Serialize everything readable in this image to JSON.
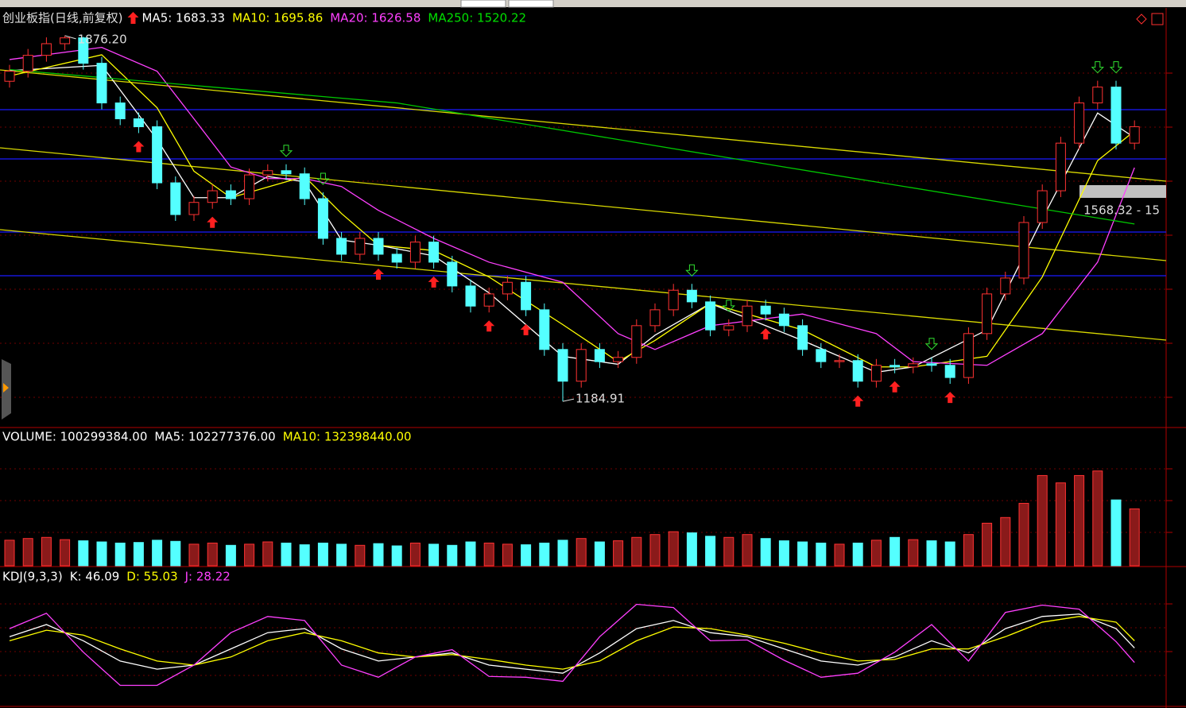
{
  "chart_data": [
    {
      "type": "candlestick",
      "title": "创业板指(日线,前复权)",
      "header": [
        {
          "text": "MA5: 1683.33",
          "color": "#ffffff"
        },
        {
          "text": "MA10: 1695.86",
          "color": "#ffff00"
        },
        {
          "text": "MA20: 1626.58",
          "color": "#ff40ff"
        },
        {
          "text": "MA250: 1520.22",
          "color": "#00e000"
        }
      ],
      "open": [
        1790,
        1809,
        1839,
        1861,
        1872,
        1824,
        1749,
        1719,
        1704,
        1598,
        1538,
        1561,
        1583,
        1568,
        1613,
        1621,
        1615,
        1568,
        1493,
        1463,
        1493,
        1463,
        1448,
        1486,
        1448,
        1403,
        1365,
        1388,
        1410,
        1358,
        1283,
        1223,
        1283,
        1260,
        1268,
        1328,
        1358,
        1395,
        1373,
        1320,
        1328,
        1365,
        1350,
        1328,
        1283,
        1260,
        1262,
        1223,
        1253,
        1250,
        1256,
        1253,
        1230,
        1313,
        1388,
        1418,
        1523,
        1583,
        1673,
        1749,
        1779,
        1673
      ],
      "high": [
        1821,
        1851,
        1873,
        1876.2,
        1874,
        1836,
        1761,
        1731,
        1716,
        1610,
        1573,
        1595,
        1595,
        1625,
        1633,
        1633,
        1627,
        1580,
        1505,
        1505,
        1505,
        1475,
        1498,
        1498,
        1460,
        1415,
        1400,
        1422,
        1422,
        1370,
        1295,
        1295,
        1295,
        1280,
        1340,
        1370,
        1407,
        1407,
        1385,
        1340,
        1377,
        1377,
        1362,
        1340,
        1295,
        1274,
        1274,
        1265,
        1265,
        1268,
        1268,
        1265,
        1325,
        1400,
        1430,
        1535,
        1595,
        1685,
        1761,
        1791,
        1791,
        1716
      ],
      "low": [
        1778,
        1797,
        1827,
        1849,
        1812,
        1737,
        1707,
        1692,
        1586,
        1526,
        1526,
        1549,
        1556,
        1556,
        1601,
        1603,
        1556,
        1481,
        1451,
        1451,
        1451,
        1436,
        1436,
        1436,
        1391,
        1353,
        1353,
        1376,
        1346,
        1271,
        1184.91,
        1211,
        1248,
        1248,
        1256,
        1316,
        1346,
        1361,
        1308,
        1308,
        1316,
        1338,
        1316,
        1271,
        1248,
        1248,
        1211,
        1211,
        1238,
        1238,
        1241,
        1218,
        1218,
        1301,
        1376,
        1406,
        1511,
        1571,
        1661,
        1737,
        1661,
        1661
      ],
      "close": [
        1809,
        1839,
        1861,
        1872,
        1824,
        1749,
        1719,
        1704,
        1598,
        1538,
        1561,
        1583,
        1568,
        1613,
        1621,
        1615,
        1568,
        1493,
        1463,
        1493,
        1463,
        1448,
        1486,
        1448,
        1403,
        1365,
        1388,
        1410,
        1358,
        1283,
        1223,
        1283,
        1260,
        1268,
        1328,
        1358,
        1395,
        1373,
        1320,
        1328,
        1365,
        1350,
        1328,
        1283,
        1260,
        1262,
        1223,
        1253,
        1250,
        1256,
        1253,
        1230,
        1313,
        1388,
        1418,
        1523,
        1583,
        1673,
        1749,
        1779,
        1673,
        1704
      ],
      "up_color": "#ff3232",
      "down_color": "#54ffff",
      "high_label": "1876.20",
      "low_label": "1184.91",
      "range_label": "1568.32 - 15",
      "buy_signals": [
        7,
        11,
        20,
        23,
        26,
        28,
        41,
        46,
        48,
        51
      ],
      "sell_signals": [
        15,
        17,
        37,
        39,
        50,
        59,
        60
      ],
      "series": [
        {
          "name": "MA5",
          "color": "#ffffff",
          "x": [
            0,
            5,
            8,
            10,
            12,
            14,
            16,
            18,
            20,
            23,
            26,
            30,
            33,
            35,
            38,
            43,
            47,
            49,
            53,
            56,
            59,
            61
          ],
          "values": [
            1810,
            1820,
            1680,
            1570,
            1570,
            1610,
            1600,
            1490,
            1480,
            1460,
            1390,
            1270,
            1255,
            1310,
            1370,
            1300,
            1240,
            1250,
            1320,
            1530,
            1730,
            1683.33
          ]
        },
        {
          "name": "MA10",
          "color": "#ffff00",
          "x": [
            0,
            5,
            8,
            10,
            12,
            14,
            16,
            18,
            20,
            23,
            26,
            30,
            33,
            35,
            38,
            43,
            47,
            49,
            53,
            56,
            59,
            61
          ],
          "values": [
            1800,
            1840,
            1740,
            1620,
            1570,
            1590,
            1610,
            1540,
            1480,
            1470,
            1420,
            1330,
            1260,
            1300,
            1370,
            1320,
            1250,
            1250,
            1270,
            1420,
            1640,
            1695.86
          ]
        },
        {
          "name": "MA20",
          "color": "#ff40ff",
          "x": [
            0,
            5,
            8,
            10,
            12,
            14,
            16,
            18,
            20,
            23,
            26,
            30,
            33,
            35,
            38,
            43,
            47,
            49,
            53,
            56,
            59,
            61
          ],
          "values": [
            1831,
            1854,
            1809,
            1719,
            1628,
            1606,
            1606,
            1591,
            1546,
            1493,
            1448,
            1410,
            1313,
            1283,
            1328,
            1350,
            1313,
            1260,
            1253,
            1313,
            1448,
            1626.58
          ]
        },
        {
          "name": "MA250",
          "color": "#00c800",
          "x": [
            0,
            21,
            42,
            61
          ],
          "values": [
            1812,
            1749,
            1628,
            1520.22
          ]
        }
      ],
      "ylim": [
        1137,
        1891
      ]
    },
    {
      "type": "bar",
      "header": [
        {
          "text": "VOLUME: 100299384.00",
          "color": "#ffffff"
        },
        {
          "text": "MA5: 102277376.00",
          "color": "#ffffff"
        },
        {
          "text": "MA10: 132398440.00",
          "color": "#ffff00"
        }
      ],
      "values": [
        45000000,
        48000000,
        50000000,
        46000000,
        44000000,
        42000000,
        40000000,
        41000000,
        45000000,
        43000000,
        38000000,
        40000000,
        36000000,
        38000000,
        42000000,
        40000000,
        37000000,
        40000000,
        38000000,
        36000000,
        39000000,
        35000000,
        40000000,
        38000000,
        36000000,
        42000000,
        40000000,
        38000000,
        37000000,
        40000000,
        45000000,
        48000000,
        42000000,
        44000000,
        50000000,
        55000000,
        60000000,
        58000000,
        52000000,
        50000000,
        55000000,
        48000000,
        44000000,
        42000000,
        40000000,
        38000000,
        40000000,
        45000000,
        50000000,
        46000000,
        44000000,
        42000000,
        55000000,
        75000000,
        85000000,
        110000000,
        159000000,
        146000000,
        159000000,
        167000000,
        116000000,
        100299384
      ],
      "ylim": [
        0,
        210000000
      ]
    },
    {
      "type": "line",
      "header": [
        {
          "text": "KDJ(9,3,3)",
          "color": "#ffffff"
        },
        {
          "text": "K: 46.09",
          "color": "#ffffff"
        },
        {
          "text": "D: 55.03",
          "color": "#ffff00"
        },
        {
          "text": "J: 28.22",
          "color": "#ff40ff"
        }
      ],
      "series": [
        {
          "name": "K",
          "color": "#ffffff",
          "x": [
            0,
            2,
            4,
            6,
            8,
            10,
            12,
            14,
            16,
            18,
            20,
            22,
            24,
            26,
            28,
            30,
            32,
            34,
            36,
            38,
            40,
            42,
            44,
            46,
            48,
            50,
            52,
            54,
            56,
            58,
            60,
            61
          ],
          "values": [
            60,
            75,
            55,
            30,
            20,
            25,
            45,
            65,
            70,
            45,
            30,
            35,
            40,
            25,
            20,
            15,
            40,
            70,
            80,
            65,
            60,
            45,
            30,
            25,
            35,
            55,
            40,
            70,
            85,
            88,
            70,
            46.09
          ]
        },
        {
          "name": "D",
          "color": "#ffff00",
          "x": [
            0,
            2,
            4,
            6,
            8,
            10,
            12,
            14,
            16,
            18,
            20,
            22,
            24,
            26,
            28,
            30,
            32,
            34,
            36,
            38,
            40,
            42,
            44,
            46,
            48,
            50,
            52,
            54,
            56,
            58,
            60,
            61
          ],
          "values": [
            55,
            68,
            62,
            45,
            30,
            25,
            35,
            55,
            65,
            55,
            40,
            35,
            38,
            32,
            25,
            20,
            30,
            55,
            72,
            70,
            62,
            52,
            40,
            30,
            32,
            45,
            45,
            60,
            78,
            85,
            78,
            55.03
          ]
        },
        {
          "name": "J",
          "color": "#ff40ff",
          "x": [
            0,
            2,
            4,
            6,
            8,
            10,
            12,
            14,
            16,
            18,
            20,
            22,
            24,
            26,
            28,
            30,
            32,
            34,
            36,
            38,
            40,
            42,
            44,
            46,
            48,
            50,
            52,
            54,
            56,
            58,
            60,
            61
          ],
          "values": [
            70,
            89,
            41,
            0,
            0,
            25,
            65,
            85,
            80,
            25,
            10,
            35,
            44,
            11,
            10,
            5,
            60,
            100,
            96,
            55,
            56,
            31,
            10,
            15,
            41,
            75,
            30,
            90,
            99,
            94,
            54,
            28.22
          ]
        }
      ],
      "ylim": [
        -25,
        125
      ]
    }
  ]
}
